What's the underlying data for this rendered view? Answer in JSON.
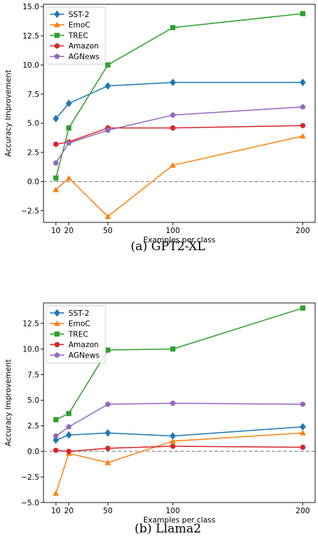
{
  "chart_data": [
    {
      "type": "line",
      "title": "",
      "caption": "(a) GPT2-XL",
      "xlabel": "Examples per class",
      "ylabel": "Accuracy Improvement",
      "x": [
        10,
        20,
        50,
        100,
        200
      ],
      "xticks": [
        "10",
        "20",
        "50",
        "100",
        "200"
      ],
      "ylim": [
        -3.5,
        15.2
      ],
      "yticks": [
        -2.5,
        0.0,
        2.5,
        5.0,
        7.5,
        10.0,
        12.5,
        15.0
      ],
      "ytick_labels": [
        "−2.5",
        "0.0",
        "2.5",
        "5.0",
        "7.5",
        "10.0",
        "12.5",
        "15.0"
      ],
      "reference_line": 0,
      "legend_position": "top-left",
      "grid": false,
      "series": [
        {
          "name": "SST-2",
          "color": "#1f77b4",
          "marker": "diamond",
          "values": [
            5.4,
            6.7,
            8.2,
            8.5,
            8.5
          ]
        },
        {
          "name": "EmoC",
          "color": "#ff7f0e",
          "marker": "triangle",
          "values": [
            -0.7,
            0.3,
            -3.0,
            1.4,
            3.9
          ]
        },
        {
          "name": "TREC",
          "color": "#2ca02c",
          "marker": "square",
          "values": [
            0.3,
            4.6,
            10.0,
            13.2,
            14.4
          ]
        },
        {
          "name": "Amazon",
          "color": "#d62728",
          "marker": "circle",
          "values": [
            3.2,
            3.4,
            4.6,
            4.6,
            4.8
          ]
        },
        {
          "name": "AGNews",
          "color": "#9467bd",
          "marker": "pentagon",
          "values": [
            1.6,
            3.3,
            4.4,
            5.7,
            6.4
          ]
        }
      ]
    },
    {
      "type": "line",
      "title": "",
      "caption": "(b) Llama2",
      "xlabel": "Examples per class",
      "ylabel": "Accuracy Improvement",
      "x": [
        10,
        20,
        50,
        100,
        200
      ],
      "xticks": [
        "10",
        "20",
        "50",
        "100",
        "200"
      ],
      "ylim": [
        -5.0,
        14.5
      ],
      "yticks": [
        -5.0,
        -2.5,
        0.0,
        2.5,
        5.0,
        7.5,
        10.0,
        12.5
      ],
      "ytick_labels": [
        "−5.0",
        "−2.5",
        "0.0",
        "2.5",
        "5.0",
        "7.5",
        "10.0",
        "12.5"
      ],
      "reference_line": 0,
      "legend_position": "top-left",
      "grid": false,
      "series": [
        {
          "name": "SST-2",
          "color": "#1f77b4",
          "marker": "diamond",
          "values": [
            1.1,
            1.6,
            1.8,
            1.5,
            2.4
          ]
        },
        {
          "name": "EmoC",
          "color": "#ff7f0e",
          "marker": "triangle",
          "values": [
            -4.1,
            -0.2,
            -1.1,
            1.0,
            1.8
          ]
        },
        {
          "name": "TREC",
          "color": "#2ca02c",
          "marker": "square",
          "values": [
            3.1,
            3.7,
            9.9,
            10.0,
            14.0
          ]
        },
        {
          "name": "Amazon",
          "color": "#d62728",
          "marker": "circle",
          "values": [
            0.1,
            0.0,
            0.3,
            0.5,
            0.4
          ]
        },
        {
          "name": "AGNews",
          "color": "#9467bd",
          "marker": "pentagon",
          "values": [
            1.5,
            2.4,
            4.6,
            4.7,
            4.6
          ]
        }
      ]
    }
  ]
}
